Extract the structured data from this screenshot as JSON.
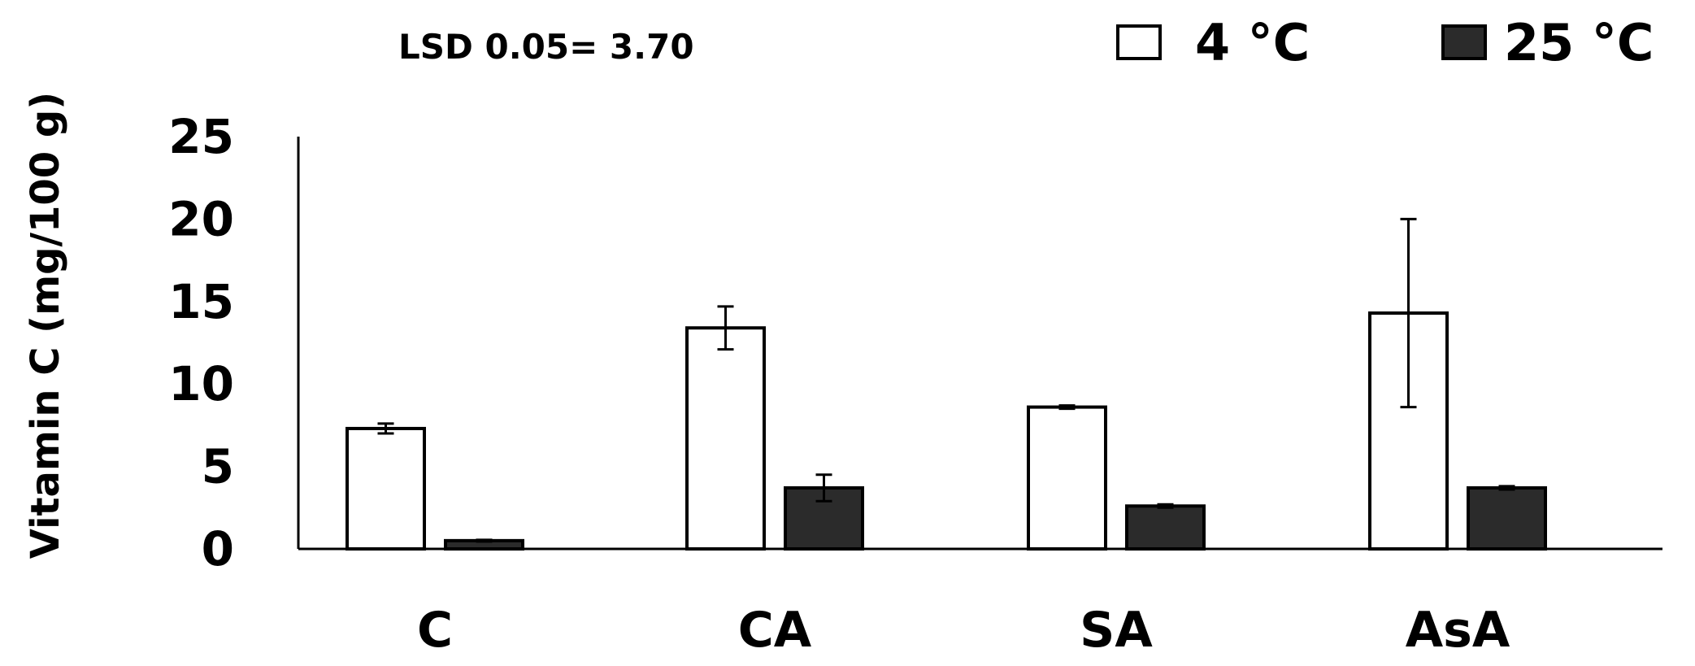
{
  "chart_data": {
    "type": "bar",
    "ylabel": "Vitamin C (mg/100 g)",
    "xlabel": "",
    "annotation": "LSD 0.05= 3.70",
    "ylim": [
      0,
      25
    ],
    "yticks": [
      "0",
      "5",
      "10",
      "15",
      "20",
      "25"
    ],
    "categories": [
      "C",
      "CA",
      "SA",
      "AsA"
    ],
    "grid": false,
    "legend_position": "top-right",
    "series": [
      {
        "name": "4 °C",
        "color": "#ffffff",
        "values": [
          7.3,
          13.4,
          8.6,
          14.3
        ],
        "errors": [
          0.3,
          1.3,
          0.1,
          5.7
        ]
      },
      {
        "name": "25 °C",
        "color": "#2b2b2b",
        "values": [
          0.5,
          3.7,
          2.6,
          3.7
        ],
        "errors": [
          0.05,
          0.8,
          0.1,
          0.1
        ]
      }
    ]
  }
}
